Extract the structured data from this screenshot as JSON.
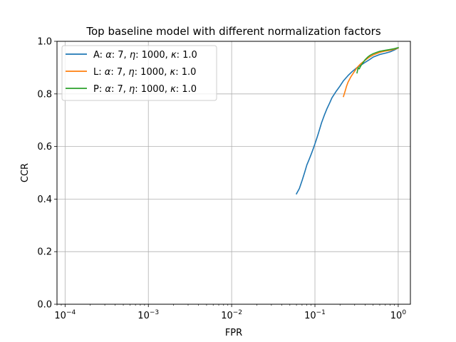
{
  "chart_data": {
    "type": "line",
    "title": "Top baseline model with different normalization factors",
    "xlabel": "FPR",
    "ylabel": "CCR",
    "xscale": "log",
    "xlim": [
      8e-05,
      1.4
    ],
    "ylim": [
      0.0,
      1.0
    ],
    "grid": true,
    "legend_position": "top-left",
    "x_ticks": [
      {
        "value": 0.0001,
        "base": "10",
        "exp": "−4"
      },
      {
        "value": 0.001,
        "base": "10",
        "exp": "−3"
      },
      {
        "value": 0.01,
        "base": "10",
        "exp": "−2"
      },
      {
        "value": 0.1,
        "base": "10",
        "exp": "−1"
      },
      {
        "value": 1,
        "base": "10",
        "exp": "0"
      }
    ],
    "y_ticks": [
      {
        "value": 0.0,
        "label": "0.0"
      },
      {
        "value": 0.2,
        "label": "0.2"
      },
      {
        "value": 0.4,
        "label": "0.4"
      },
      {
        "value": 0.6,
        "label": "0.6"
      },
      {
        "value": 0.8,
        "label": "0.8"
      },
      {
        "value": 1.0,
        "label": "1.0"
      }
    ],
    "series": [
      {
        "name": "A: α: 7,  η: 1000,  κ: 1.0",
        "legend_prefix": "A: ",
        "legend_params": [
          "α",
          ": 7,  ",
          "η",
          ": 1000,  ",
          "κ",
          ": 1.0"
        ],
        "color": "#1f77b4",
        "x": [
          0.06,
          0.065,
          0.07,
          0.075,
          0.08,
          0.085,
          0.09,
          0.095,
          0.1,
          0.105,
          0.11,
          0.12,
          0.13,
          0.14,
          0.15,
          0.16,
          0.18,
          0.2,
          0.22,
          0.25,
          0.28,
          0.32,
          0.36,
          0.4,
          0.45,
          0.5,
          0.6,
          0.7,
          0.8,
          0.9,
          1.0
        ],
        "y": [
          0.42,
          0.44,
          0.47,
          0.5,
          0.53,
          0.55,
          0.57,
          0.59,
          0.61,
          0.63,
          0.65,
          0.69,
          0.72,
          0.745,
          0.765,
          0.785,
          0.81,
          0.83,
          0.85,
          0.87,
          0.885,
          0.9,
          0.91,
          0.92,
          0.93,
          0.94,
          0.95,
          0.955,
          0.96,
          0.967,
          0.975
        ]
      },
      {
        "name": "L: α: 7,  η: 1000,  κ: 1.0",
        "legend_prefix": "L: ",
        "legend_params": [
          "α",
          ": 7,  ",
          "η",
          ": 1000,  ",
          "κ",
          ": 1.0"
        ],
        "color": "#ff7f0e",
        "x": [
          0.22,
          0.23,
          0.24,
          0.25,
          0.27,
          0.29,
          0.32,
          0.35,
          0.4,
          0.45,
          0.5,
          0.6,
          0.7,
          0.8,
          0.9,
          1.0
        ],
        "y": [
          0.79,
          0.81,
          0.83,
          0.845,
          0.865,
          0.88,
          0.9,
          0.913,
          0.928,
          0.94,
          0.948,
          0.958,
          0.963,
          0.966,
          0.97,
          0.975
        ]
      },
      {
        "name": "P: α: 7,  η: 1000,  κ: 1.0",
        "legend_prefix": "P: ",
        "legend_params": [
          "α",
          ": 7,  ",
          "η",
          ": 1000,  ",
          "κ",
          ": 1.0"
        ],
        "color": "#2ca02c",
        "x": [
          0.32,
          0.33,
          0.34,
          0.36,
          0.38,
          0.4,
          0.43,
          0.46,
          0.5,
          0.55,
          0.6,
          0.7,
          0.8,
          0.9,
          1.0
        ],
        "y": [
          0.88,
          0.9,
          0.895,
          0.91,
          0.92,
          0.93,
          0.94,
          0.947,
          0.953,
          0.958,
          0.962,
          0.966,
          0.969,
          0.972,
          0.976
        ]
      }
    ]
  }
}
